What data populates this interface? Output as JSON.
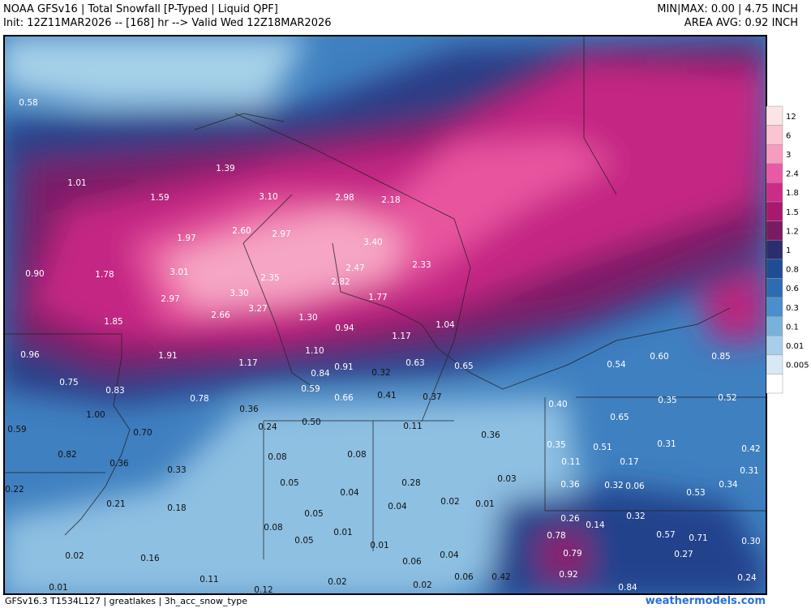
{
  "header": {
    "title": "NOAA GFSv16 | Total Snowfall [P-Typed | Liquid QPF]",
    "init": "Init: 12Z11MAR2026 -- [168] hr --> Valid Wed 12Z18MAR2026",
    "minmax": "MIN|MAX: 0.00 | 4.75 INCH",
    "area_avg": "AREA AVG: 0.92 INCH"
  },
  "footer": {
    "model": "GFSv16.3 T1534L127 | greatlakes | 3h_acc_snow_type",
    "site": "weathermodels.com"
  },
  "colorbar": {
    "labels": [
      "12",
      "6",
      "3",
      "2.4",
      "1.8",
      "1.5",
      "1.2",
      "1",
      "0.8",
      "0.6",
      "0.3",
      "0.1",
      "0.01",
      "0.005"
    ],
    "colors": [
      "#fde4e4",
      "#fac4d2",
      "#f59cbf",
      "#e85aa5",
      "#cc2b87",
      "#a8186f",
      "#7a1a62",
      "#2b2d6e",
      "#1f4d93",
      "#2f6bb2",
      "#4b8ecb",
      "#78b2dc",
      "#a8cfe9",
      "#d8e8f5",
      "#ffffff"
    ]
  },
  "points": {
    "labels": [
      "0.58",
      "1.01",
      "1.39",
      "1.59",
      "3.10",
      "2.98",
      "2.18",
      "2.60",
      "2.97",
      "1.97",
      "3.40",
      "0.90",
      "1.78",
      "3.01",
      "2.47",
      "2.33",
      "2.35",
      "2.82",
      "2.97",
      "3.30",
      "1.77",
      "2.66",
      "3.27",
      "1.85",
      "1.30",
      "0.94",
      "1.04",
      "1.17",
      "0.96",
      "1.91",
      "1.10",
      "1.17",
      "0.91",
      "0.63",
      "0.65",
      "0.84",
      "0.32",
      "0.54",
      "0.60",
      "0.85",
      "0.75",
      "0.83",
      "0.59",
      "0.66",
      "0.41",
      "0.37",
      "0.78",
      "0.35",
      "0.52",
      "0.40",
      "1.00",
      "0.36",
      "0.24",
      "0.50",
      "0.65",
      "0.11",
      "0.70",
      "0.59",
      "0.36",
      "0.35",
      "0.51",
      "0.31",
      "0.42",
      "0.82",
      "0.08",
      "0.08",
      "0.11",
      "0.17",
      "0.36",
      "0.33",
      "0.31",
      "0.05",
      "0.28",
      "0.03",
      "0.36",
      "0.32",
      "0.06",
      "0.34",
      "0.22",
      "0.53",
      "0.04",
      "0.21",
      "0.18",
      "0.04",
      "0.02",
      "0.01",
      "0.05",
      "0.26",
      "0.32",
      "0.08",
      "0.01",
      "0.14",
      "0.78",
      "0.57",
      "0.71",
      "0.30",
      "0.05",
      "0.01",
      "0.79",
      "0.04",
      "0.02",
      "0.16",
      "0.06",
      "0.27",
      "0.92",
      "0.42",
      "0.06",
      "0.11",
      "0.24",
      "0.02",
      "0.02",
      "0.01",
      "0.12",
      "0.84"
    ]
  }
}
